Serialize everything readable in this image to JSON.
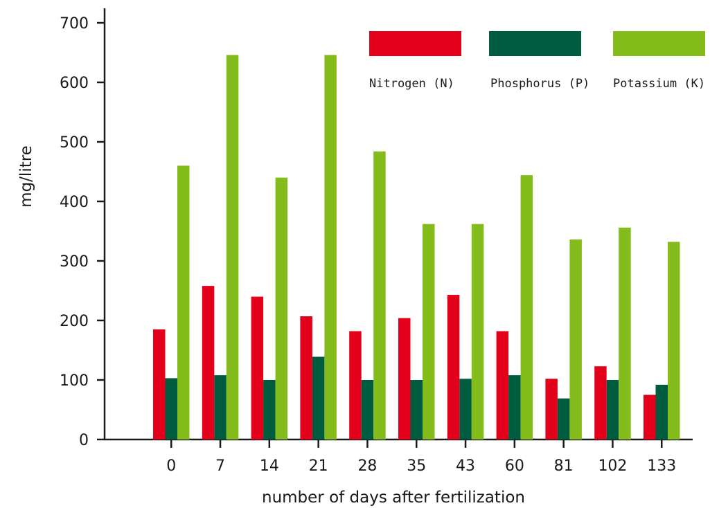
{
  "chart_data": {
    "type": "bar",
    "title": "",
    "xlabel": "number of days after fertilization",
    "ylabel": "mg/litre",
    "ylim": [
      0,
      700
    ],
    "yticks": [
      0,
      100,
      200,
      300,
      400,
      500,
      600,
      700
    ],
    "categories": [
      "0",
      "7",
      "14",
      "21",
      "28",
      "35",
      "43",
      "60",
      "81",
      "102",
      "133"
    ],
    "series": [
      {
        "name": "Nitrogen (N)",
        "color": "#e3001b",
        "values": [
          185,
          258,
          240,
          207,
          182,
          204,
          243,
          182,
          102,
          123,
          75
        ]
      },
      {
        "name": "Phosphorus (P)",
        "color": "#005c3e",
        "values": [
          103,
          108,
          100,
          139,
          100,
          100,
          102,
          108,
          69,
          100,
          92
        ]
      },
      {
        "name": "Potassium (K)",
        "color": "#84bd1b",
        "values": [
          460,
          646,
          440,
          646,
          484,
          362,
          362,
          444,
          336,
          356,
          332
        ]
      }
    ],
    "legend_position": "top-right",
    "grid": false
  }
}
